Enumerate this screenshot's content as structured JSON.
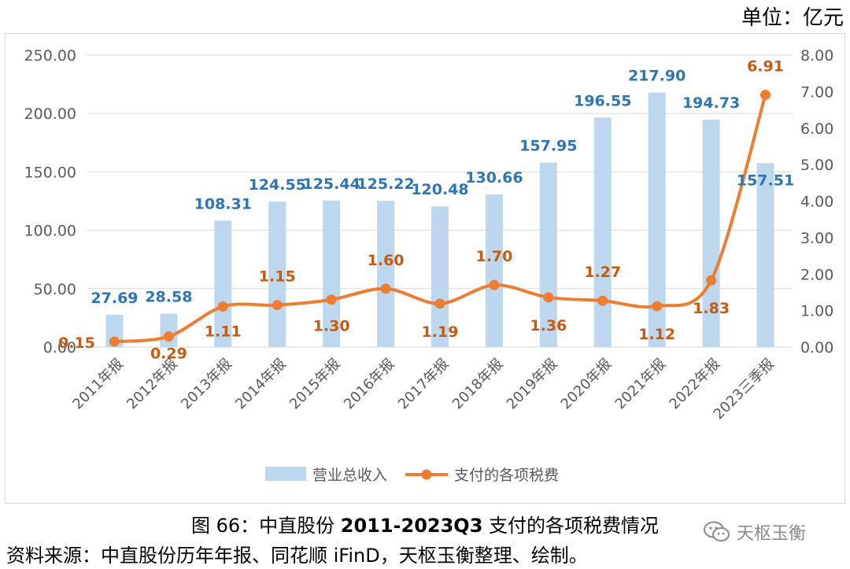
{
  "unit_label": "单位：亿元",
  "caption": {
    "prefix": "图  66：中直股份 ",
    "bold": "2011-2023Q3",
    "suffix": " 支付的各项税费情况"
  },
  "source": "资料来源：中直股份历年年报、同花顺 iFinD，天枢玉衡整理、绘制。",
  "watermark": "天枢玉衡",
  "colors": {
    "bar": "#bdd7ee",
    "line": "#ed7d31",
    "bar_label": "#2e75b6",
    "line_label": "#c55a11",
    "axis_text": "#595959",
    "grid": "#d9d9d9"
  },
  "chart_data": {
    "type": "bar+line",
    "categories": [
      "2011年报",
      "2012年报",
      "2013年报",
      "2014年报",
      "2015年报",
      "2016年报",
      "2017年报",
      "2018年报",
      "2019年报",
      "2020年报",
      "2021年报",
      "2022年报",
      "2023三季报"
    ],
    "series": [
      {
        "name": "营业总收入",
        "type": "bar",
        "axis": "left",
        "values": [
          27.69,
          28.58,
          108.31,
          124.55,
          125.44,
          125.22,
          120.48,
          130.66,
          157.95,
          196.55,
          217.9,
          194.73,
          157.51
        ],
        "labels": [
          "27.69",
          "28.58",
          "108.31",
          "124.55",
          "125.44",
          "125.22",
          "120.48",
          "130.66",
          "157.95",
          "196.55",
          "217.90",
          "194.73",
          "157.51"
        ]
      },
      {
        "name": "支付的各项税费",
        "type": "line",
        "axis": "right",
        "values": [
          0.15,
          0.29,
          1.11,
          1.15,
          1.3,
          1.6,
          1.19,
          1.7,
          1.36,
          1.27,
          1.12,
          1.83,
          6.91
        ],
        "labels": [
          "0.15",
          "0.29",
          "1.11",
          "1.15",
          "1.30",
          "1.60",
          "1.19",
          "1.70",
          "1.36",
          "1.27",
          "1.12",
          "1.83",
          "6.91"
        ]
      }
    ],
    "left_axis": {
      "min": 0,
      "max": 250,
      "ticks": [
        "0.00",
        "50.00",
        "100.00",
        "150.00",
        "200.00",
        "250.00"
      ]
    },
    "right_axis": {
      "min": 0,
      "max": 8,
      "ticks": [
        "0.00",
        "1.00",
        "2.00",
        "3.00",
        "4.00",
        "5.00",
        "6.00",
        "7.00",
        "8.00"
      ]
    },
    "legend": [
      "营业总收入",
      "支付的各项税费"
    ],
    "legend_position": "bottom"
  }
}
